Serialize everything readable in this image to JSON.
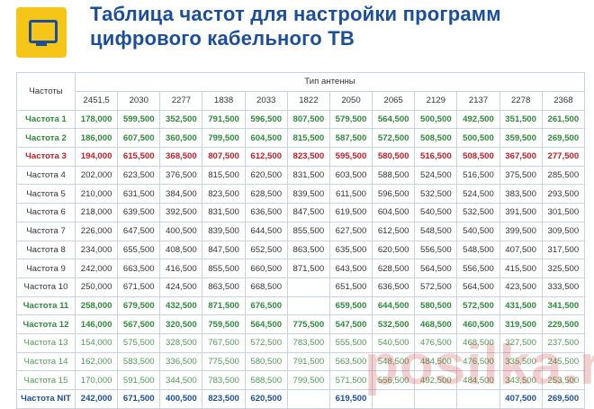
{
  "title": {
    "line1": "Таблица частот для настройки программ",
    "line2": "цифрового кабельного ТВ"
  },
  "table": {
    "row_header": "Частоты",
    "group_header": "Тип антенны",
    "columns": [
      "2451,5",
      "2030",
      "2277",
      "1838",
      "2033",
      "1822",
      "2050",
      "2065",
      "2129",
      "2137",
      "2278",
      "2368"
    ],
    "rows": [
      {
        "label": "Частота 1",
        "style": "green",
        "cells": [
          "178,000",
          "599,500",
          "352,500",
          "791,500",
          "596,500",
          "807,500",
          "579,500",
          "564,500",
          "500,500",
          "492,500",
          "351,500",
          "261,500"
        ]
      },
      {
        "label": "Частота 2",
        "style": "green",
        "cells": [
          "186,000",
          "607,500",
          "360,500",
          "799,500",
          "604,500",
          "815,500",
          "587,500",
          "572,500",
          "508,500",
          "500,500",
          "359,500",
          "269,500"
        ]
      },
      {
        "label": "Частота 3",
        "style": "red",
        "cells": [
          "194,000",
          "615,500",
          "368,500",
          "807,500",
          "612,500",
          "823,500",
          "595,500",
          "580,500",
          "516,500",
          "508,500",
          "367,500",
          "277,500"
        ]
      },
      {
        "label": "Частота 4",
        "style": "plain",
        "cells": [
          "202,000",
          "623,500",
          "376,500",
          "815,500",
          "620,500",
          "831,500",
          "603,500",
          "588,500",
          "524,500",
          "516,500",
          "375,500",
          "285,500"
        ]
      },
      {
        "label": "Частота 5",
        "style": "plain",
        "cells": [
          "210,000",
          "631,500",
          "384,500",
          "823,500",
          "628,500",
          "839,500",
          "611,500",
          "596,500",
          "532,500",
          "524,500",
          "383,500",
          "293,500"
        ]
      },
      {
        "label": "Частота 6",
        "style": "plain",
        "cells": [
          "218,000",
          "639,500",
          "392,500",
          "831,500",
          "636,500",
          "847,500",
          "619,500",
          "604,500",
          "540,500",
          "532,500",
          "391,500",
          "301,500"
        ]
      },
      {
        "label": "Частота 7",
        "style": "plain",
        "cells": [
          "226,000",
          "647,500",
          "400,500",
          "839,500",
          "644,500",
          "855,500",
          "627,500",
          "612,500",
          "548,500",
          "540,500",
          "399,500",
          "309,500"
        ]
      },
      {
        "label": "Частота 8",
        "style": "plain",
        "cells": [
          "234,000",
          "655,500",
          "408,500",
          "847,500",
          "652,500",
          "863,500",
          "635,500",
          "620,500",
          "556,500",
          "548,500",
          "407,500",
          "317,500"
        ]
      },
      {
        "label": "Частота 9",
        "style": "plain",
        "cells": [
          "242,000",
          "663,500",
          "416,500",
          "855,500",
          "660,500",
          "871,500",
          "643,500",
          "628,500",
          "564,500",
          "556,500",
          "415,500",
          "325,500"
        ]
      },
      {
        "label": "Частота 10",
        "style": "plain",
        "cells": [
          "250,000",
          "671,500",
          "424,500",
          "863,500",
          "668,500",
          "",
          "651,500",
          "636,500",
          "572,500",
          "564,500",
          "423,500",
          "333,500"
        ]
      },
      {
        "label": "Частота 11",
        "style": "green",
        "cells": [
          "258,000",
          "679,500",
          "432,500",
          "871,500",
          "676,500",
          "",
          "659,500",
          "644,500",
          "580,500",
          "572,500",
          "431,500",
          "341,500"
        ]
      },
      {
        "label": "Частота 12",
        "style": "green",
        "cells": [
          "146,000",
          "567,500",
          "320,500",
          "759,500",
          "564,500",
          "775,500",
          "547,500",
          "532,500",
          "468,500",
          "460,500",
          "319,500",
          "229,500"
        ]
      },
      {
        "label": "Частота 13",
        "style": "lightgreen",
        "cells": [
          "154,000",
          "575,500",
          "328,500",
          "767,500",
          "572,500",
          "783,500",
          "555,500",
          "540,500",
          "476,500",
          "468,500",
          "327,500",
          "237,500"
        ]
      },
      {
        "label": "Частота 14",
        "style": "lightgreen",
        "cells": [
          "162,000",
          "583,500",
          "336,500",
          "775,500",
          "580,500",
          "791,500",
          "563,500",
          "548,500",
          "484,500",
          "476,500",
          "335,500",
          "245,500"
        ]
      },
      {
        "label": "Частота 15",
        "style": "lightgreen",
        "cells": [
          "170,000",
          "591,500",
          "344,500",
          "783,500",
          "588,500",
          "799,500",
          "571,500",
          "556,500",
          "492,500",
          "484,500",
          "343,500",
          "253,500"
        ]
      },
      {
        "label": "Частота NIT",
        "style": "blue",
        "cells": [
          "242,000",
          "671,500",
          "400,500",
          "823,500",
          "620,500",
          "",
          "619,500",
          "",
          "",
          "",
          "407,500",
          "269,500"
        ]
      }
    ]
  },
  "watermark": "posilka.ru",
  "icon": "tv-icon"
}
